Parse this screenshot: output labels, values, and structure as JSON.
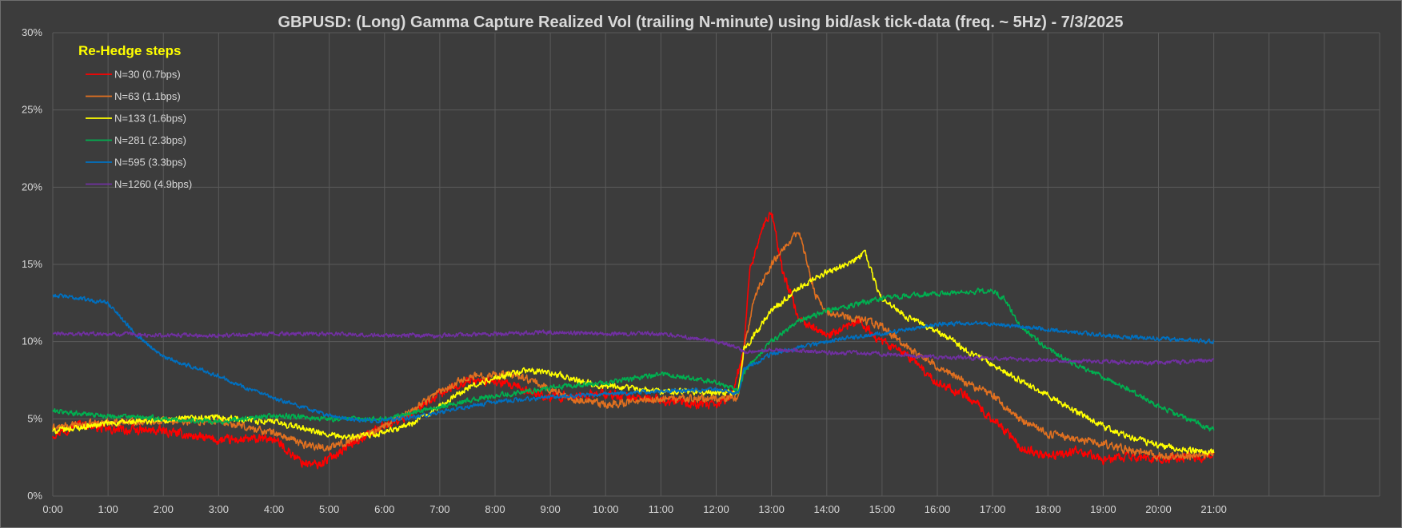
{
  "chart_data": {
    "type": "line",
    "title": "GBPUSD: (Long) Gamma Capture Realized Vol (trailing N-minute) using bid/ask tick-data (freq. ~ 5Hz) - 7/3/2025",
    "xlabel": "",
    "ylabel": "",
    "xlim": [
      0,
      24
    ],
    "ylim": [
      0,
      30
    ],
    "x_ticks": [
      "0:00",
      "1:00",
      "2:00",
      "3:00",
      "4:00",
      "5:00",
      "6:00",
      "7:00",
      "8:00",
      "9:00",
      "10:00",
      "11:00",
      "12:00",
      "13:00",
      "14:00",
      "15:00",
      "16:00",
      "17:00",
      "18:00",
      "19:00",
      "20:00",
      "21:00"
    ],
    "y_ticks": [
      "0%",
      "5%",
      "10%",
      "15%",
      "20%",
      "25%",
      "30%"
    ],
    "grid": true,
    "legend": {
      "title": "Re-Hedge steps",
      "placement": "top-left"
    },
    "series": [
      {
        "name": "N=30 (0.7bps)",
        "color": "#ff0000",
        "noise": 0.45,
        "x": [
          0,
          0.5,
          1,
          2,
          3,
          4,
          4.5,
          4.8,
          5.5,
          6,
          6.5,
          7,
          7.5,
          8,
          9,
          10,
          11,
          12,
          12.3,
          12.5,
          12.6,
          12.8,
          13.0,
          13.2,
          13.5,
          14,
          14.3,
          14.6,
          15,
          15.5,
          16,
          16.5,
          17,
          17.5,
          18,
          18.5,
          19,
          19.5,
          20,
          20.5,
          21
        ],
        "y": [
          4,
          4.7,
          4.3,
          4.2,
          3.6,
          3.7,
          2.2,
          2.0,
          3.6,
          4.6,
          5.3,
          6.6,
          7.5,
          7.4,
          6.4,
          6.6,
          6.2,
          5.8,
          6.6,
          9.5,
          14.5,
          17.0,
          18.5,
          14.5,
          11.5,
          10.3,
          10.8,
          11.3,
          10.0,
          9.0,
          7.3,
          6.6,
          5.0,
          3.2,
          2.5,
          3.0,
          2.3,
          2.6,
          2.4,
          2.5,
          2.6
        ]
      },
      {
        "name": "N=63 (1.1bps)",
        "color": "#e07020",
        "noise": 0.38,
        "x": [
          0,
          1,
          2,
          3,
          4,
          4.5,
          5,
          5.5,
          6,
          6.5,
          7,
          7.5,
          8,
          8.5,
          9,
          9.5,
          10,
          11,
          12,
          12.4,
          12.5,
          12.7,
          13.0,
          13.3,
          13.5,
          13.8,
          14,
          14.5,
          15,
          15.5,
          16,
          16.5,
          17,
          17.5,
          18,
          18.5,
          19,
          19.5,
          20,
          20.5,
          21
        ],
        "y": [
          4.4,
          4.8,
          4.9,
          4.8,
          4.1,
          3.4,
          3.1,
          3.8,
          4.5,
          5.6,
          6.8,
          7.7,
          7.9,
          7.7,
          6.9,
          6.2,
          5.9,
          6.3,
          6.3,
          6.4,
          9.5,
          13.0,
          15.0,
          16.5,
          17.0,
          13.0,
          12.0,
          11.5,
          11.0,
          9.5,
          8.4,
          7.4,
          6.5,
          5.0,
          4.0,
          3.7,
          3.4,
          2.9,
          2.6,
          2.6,
          2.8
        ]
      },
      {
        "name": "N=133 (1.6bps)",
        "color": "#ffff00",
        "noise": 0.3,
        "x": [
          0,
          1,
          2,
          3,
          4,
          4.5,
          5,
          5.5,
          6,
          6.5,
          7,
          7.5,
          8,
          8.5,
          9,
          9.5,
          10,
          11,
          12,
          12.4,
          12.5,
          13.0,
          13.5,
          14,
          14.5,
          14.7,
          14.85,
          15,
          15.5,
          16,
          16.5,
          17,
          17.5,
          18,
          18.5,
          19,
          19.5,
          20,
          20.5,
          21
        ],
        "y": [
          4.2,
          4.7,
          4.9,
          5.1,
          4.8,
          4.4,
          3.9,
          3.8,
          4.1,
          4.7,
          5.8,
          7.0,
          7.6,
          8.1,
          8.0,
          7.5,
          7.1,
          6.8,
          6.7,
          6.8,
          9.5,
          12.0,
          13.5,
          14.5,
          15.3,
          15.8,
          14.0,
          12.7,
          11.5,
          10.7,
          9.5,
          8.5,
          7.5,
          6.5,
          5.5,
          4.5,
          3.8,
          3.3,
          3.0,
          2.8
        ]
      },
      {
        "name": "N=281 (2.3bps)",
        "color": "#00b050",
        "noise": 0.25,
        "x": [
          0,
          1,
          2,
          3,
          4,
          5,
          6,
          7,
          8,
          9,
          10,
          11,
          12,
          12.4,
          12.5,
          13.0,
          13.5,
          14,
          14.5,
          15,
          15.5,
          16,
          16.5,
          17,
          17.2,
          17.5,
          18,
          18.5,
          19,
          19.5,
          20,
          20.5,
          21
        ],
        "y": [
          5.5,
          5.2,
          5.0,
          4.8,
          5.2,
          5.0,
          5.0,
          5.8,
          6.5,
          7.0,
          7.3,
          7.9,
          7.4,
          6.8,
          8.0,
          10.0,
          11.3,
          12.0,
          12.4,
          12.8,
          13.0,
          13.1,
          13.2,
          13.3,
          12.8,
          11.0,
          9.5,
          8.5,
          7.7,
          6.8,
          5.8,
          5.0,
          4.3
        ]
      },
      {
        "name": "N=595 (3.3bps)",
        "color": "#0070c0",
        "noise": 0.2,
        "x": [
          0,
          0.5,
          1,
          1.5,
          2,
          2.5,
          3,
          3.5,
          4,
          4.5,
          5,
          5.5,
          6,
          6.5,
          7,
          7.5,
          8,
          9,
          10,
          11,
          12,
          12.4,
          12.5,
          13.0,
          13.5,
          14,
          14.5,
          15,
          15.5,
          16,
          16.5,
          17,
          17.5,
          18,
          18.5,
          19,
          19.5,
          20,
          20.5,
          21
        ],
        "y": [
          13.0,
          12.8,
          12.5,
          10.5,
          9.0,
          8.4,
          7.8,
          7.0,
          6.3,
          5.8,
          5.2,
          4.9,
          4.9,
          5.1,
          5.4,
          5.8,
          6.1,
          6.4,
          6.6,
          6.8,
          6.9,
          6.6,
          8.2,
          9.2,
          9.6,
          10.0,
          10.3,
          10.5,
          10.8,
          11.1,
          11.2,
          11.1,
          11.0,
          10.8,
          10.6,
          10.4,
          10.3,
          10.2,
          10.1,
          10.0
        ]
      },
      {
        "name": "N=1260 (4.9bps)",
        "color": "#7030a0",
        "noise": 0.2,
        "x": [
          0,
          1,
          2,
          3,
          4,
          5,
          6,
          7,
          8,
          9,
          10,
          11,
          12,
          12.4,
          12.5,
          13,
          13.5,
          14,
          15,
          16,
          17,
          18,
          19,
          20,
          21
        ],
        "y": [
          10.5,
          10.5,
          10.4,
          10.4,
          10.5,
          10.5,
          10.4,
          10.4,
          10.5,
          10.6,
          10.5,
          10.5,
          10.0,
          9.6,
          9.3,
          9.5,
          9.4,
          9.3,
          9.2,
          9.0,
          8.9,
          8.8,
          8.7,
          8.6,
          8.8
        ]
      }
    ]
  }
}
